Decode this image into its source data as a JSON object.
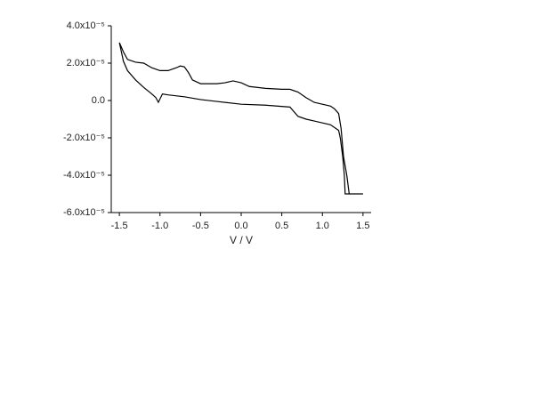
{
  "chart_data": {
    "type": "line",
    "xlabel": "V / V",
    "x": [
      -1.5,
      -1.45,
      -1.4,
      -1.3,
      -1.2,
      -1.1,
      -1.0,
      -0.9,
      -0.8,
      -0.75,
      -0.7,
      -0.65,
      -0.6,
      -0.5,
      -0.3,
      -0.2,
      -0.1,
      0.0,
      0.1,
      0.3,
      0.5,
      0.6,
      0.7,
      0.8,
      0.9,
      1.0,
      1.1,
      1.15,
      1.2,
      1.23,
      1.26,
      1.3,
      1.33,
      1.5,
      1.33,
      1.28,
      1.27,
      1.25,
      1.22,
      1.2,
      1.1,
      1.0,
      0.9,
      0.8,
      0.7,
      0.6,
      0.3,
      0.0,
      -0.3,
      -0.5,
      -0.7,
      -0.9,
      -0.97,
      -1.02,
      -1.05,
      -1.1,
      -1.2,
      -1.3,
      -1.4,
      -1.45,
      -1.5
    ],
    "series": [
      {
        "color": "#000000",
        "values": [
          3.1e-05,
          2.6e-05,
          2.2e-05,
          2.05e-05,
          2e-05,
          1.75e-05,
          1.6e-05,
          1.6e-05,
          1.75e-05,
          1.85e-05,
          1.8e-05,
          1.5e-05,
          1.1e-05,
          9e-06,
          9e-06,
          9.5e-06,
          1.05e-05,
          9.5e-06,
          7.5e-06,
          6.5e-06,
          6e-06,
          6e-06,
          4.5e-06,
          1.5e-06,
          -1e-06,
          -2e-06,
          -3e-06,
          -4.5e-06,
          -7e-06,
          -1.5e-05,
          -3e-05,
          -4e-05,
          -5e-05,
          -5e-05,
          -5e-05,
          -5e-05,
          -4e-05,
          -3e-05,
          -2e-05,
          -1.6e-05,
          -1.3e-05,
          -1.2e-05,
          -1.1e-05,
          -1e-05,
          -8.5e-06,
          -3.5e-06,
          -2.5e-06,
          -2e-06,
          -5e-07,
          5e-07,
          2e-06,
          3e-06,
          3.5e-06,
          -1e-06,
          1.5e-06,
          3.5e-06,
          7e-06,
          1.1e-05,
          1.6e-05,
          2.1e-05,
          3.1e-05
        ]
      }
    ],
    "xlim": [
      -1.6,
      1.6
    ],
    "ylim": [
      -6e-05,
      4e-05
    ],
    "xticks": [
      -1.5,
      {
        "value": -1.0,
        "label": "-1.0"
      },
      -0.5,
      {
        "value": 0.0,
        "label": "0.0"
      },
      0.5,
      {
        "value": 1.0,
        "label": "1.0"
      },
      1.5
    ],
    "yticks": [
      {
        "value": -6e-05,
        "label": "-6.0x10⁻⁵"
      },
      {
        "value": -4e-05,
        "label": "-4.0x10⁻⁵"
      },
      {
        "value": -2e-05,
        "label": "-2.0x10⁻⁵"
      },
      {
        "value": 0.0,
        "label": "0.0"
      },
      {
        "value": 2e-05,
        "label": "2.0x10⁻⁵"
      },
      {
        "value": 4e-05,
        "label": "4.0x10⁻⁵"
      }
    ]
  }
}
